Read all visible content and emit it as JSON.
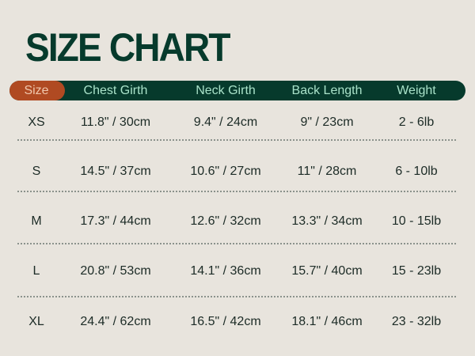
{
  "title": "SIZE CHART",
  "colors": {
    "background": "#e8e4dd",
    "header": "#063a2c",
    "size_pill": "#b04a22",
    "header_text": "#a9e2c9"
  },
  "headers": [
    "Size",
    "Chest Girth",
    "Neck Girth",
    "Back Length",
    "Weight"
  ],
  "rows": [
    [
      "XS",
      "11.8\" / 30cm",
      "9.4\" / 24cm",
      "9\" / 23cm",
      "2 - 6lb"
    ],
    [
      "S",
      "14.5\" / 37cm",
      "10.6\" / 27cm",
      "11\" / 28cm",
      "6 - 10lb"
    ],
    [
      "M",
      "17.3\" / 44cm",
      "12.6\" / 32cm",
      "13.3\" / 34cm",
      "10 - 15lb"
    ],
    [
      "L",
      "20.8\" / 53cm",
      "14.1\" / 36cm",
      "15.7\" / 40cm",
      "15 - 23lb"
    ],
    [
      "XL",
      "24.4\" / 62cm",
      "16.5\" / 42cm",
      "18.1\" / 46cm",
      "23 - 32lb"
    ]
  ]
}
